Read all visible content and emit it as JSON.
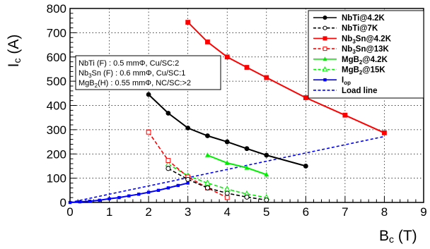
{
  "chart_data": {
    "type": "line",
    "title": "",
    "xlabel": {
      "main": "B",
      "sub": "c",
      "unit": " (T)"
    },
    "ylabel": {
      "main": "I",
      "sub": "c",
      "unit": " (A)"
    },
    "xlim": [
      0,
      9
    ],
    "ylim": [
      0,
      800
    ],
    "xticks": [
      "0",
      "1",
      "2",
      "3",
      "4",
      "5",
      "6",
      "7",
      "8",
      "9"
    ],
    "yticks": [
      "0",
      "100",
      "200",
      "300",
      "400",
      "500",
      "600",
      "700",
      "800"
    ],
    "grid": true,
    "legend_position": "top-right",
    "series": [
      {
        "name": "NbTi@4.2K",
        "legend": [
          {
            "t": "NbTi@4.2K"
          }
        ],
        "color": "#000000",
        "dash": "solid",
        "marker": "circle-filled",
        "x": [
          2,
          2.5,
          3,
          3.5,
          4,
          4.5,
          5,
          6
        ],
        "y": [
          445,
          368,
          307,
          275,
          250,
          222,
          195,
          150
        ]
      },
      {
        "name": "NbTi@7K",
        "legend": [
          {
            "t": "NbTi@7K"
          }
        ],
        "color": "#000000",
        "dash": "dashed",
        "marker": "circle-open",
        "x": [
          2.5,
          3,
          3.5,
          4,
          4.5,
          5
        ],
        "y": [
          140,
          95,
          60,
          38,
          22,
          10
        ]
      },
      {
        "name": "Nb3Sn@4.2K",
        "legend": [
          {
            "t": "Nb"
          },
          {
            "t": "3",
            "sub": true
          },
          {
            "t": "Sn@4.2K"
          }
        ],
        "color": "#ff0000",
        "dash": "solid",
        "marker": "square-filled",
        "x": [
          3,
          3.5,
          4,
          4.5,
          5,
          6,
          7,
          8
        ],
        "y": [
          743,
          662,
          600,
          557,
          515,
          432,
          360,
          287
        ]
      },
      {
        "name": "Nb3Sn@13K",
        "legend": [
          {
            "t": "Nb"
          },
          {
            "t": "3",
            "sub": true
          },
          {
            "t": "Sn@13K"
          }
        ],
        "color": "#ff0000",
        "dash": "dashed",
        "marker": "square-open",
        "x": [
          2,
          2.5,
          3,
          3.5,
          4
        ],
        "y": [
          290,
          173,
          105,
          60,
          20
        ]
      },
      {
        "name": "MgB2@4.2K",
        "legend": [
          {
            "t": "MgB"
          },
          {
            "t": "2",
            "sub": true
          },
          {
            "t": "@4.2K"
          }
        ],
        "color": "#00ee00",
        "dash": "solid",
        "marker": "triangle-filled",
        "x": [
          3.5,
          4,
          4.5,
          5
        ],
        "y": [
          195,
          163,
          143,
          115
        ]
      },
      {
        "name": "MgB2@15K",
        "legend": [
          {
            "t": "MgB"
          },
          {
            "t": "2",
            "sub": true
          },
          {
            "t": "@15K"
          }
        ],
        "color": "#00ee00",
        "dash": "dashed",
        "marker": "triangle-open",
        "x": [
          2.5,
          3,
          3.5,
          4,
          4.5,
          5
        ],
        "y": [
          158,
          110,
          80,
          55,
          35,
          20
        ]
      },
      {
        "name": "Iop",
        "legend": [
          {
            "t": "I"
          },
          {
            "t": "op",
            "sub": true
          }
        ],
        "color": "#0000ff",
        "dash": "solid",
        "marker": "square-filled-small",
        "x": [
          0,
          0.25,
          0.5,
          0.75,
          1,
          1.25,
          1.5,
          1.75,
          2,
          2.25,
          2.5,
          2.75,
          3
        ],
        "y": [
          0,
          2.5,
          5,
          9,
          15,
          20,
          27,
          34,
          42,
          50,
          60,
          70,
          80
        ]
      },
      {
        "name": "Load line",
        "legend": [
          {
            "t": "Load line"
          }
        ],
        "color": "#0000ff",
        "dash": "dashed",
        "marker": "none",
        "x": [
          0,
          8
        ],
        "y": [
          0,
          272
        ]
      }
    ],
    "annotation": {
      "lines": [
        [
          {
            "t": "NbTi (F) : 0.5 mmΦ, Cu/SC:2"
          }
        ],
        [
          {
            "t": "Nb"
          },
          {
            "t": "3",
            "sub": true
          },
          {
            "t": "Sn (F) : 0.6 mmΦ, Cu/SC:1"
          }
        ],
        [
          {
            "t": "MgB"
          },
          {
            "t": "2",
            "sub": true
          },
          {
            "t": "(H) : 0.55 mmΦ, NC/SC:>2"
          }
        ]
      ]
    }
  }
}
